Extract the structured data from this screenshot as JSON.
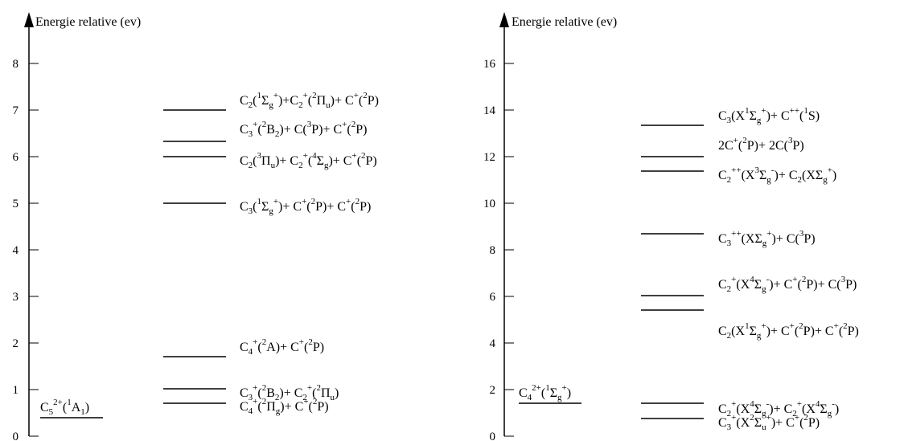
{
  "panels": [
    {
      "title": "Energie relative (ev)",
      "ymax": 9,
      "ticks": [
        0,
        1,
        2,
        3,
        4,
        5,
        6,
        7,
        8
      ],
      "reference": {
        "label": "C5(2+)(1A1)",
        "energy": 0.4
      },
      "levels": [
        {
          "energy": 0.7,
          "label": "C4+(2Πg)+ C+(2P)"
        },
        {
          "energy": 1.0,
          "label": "C3+(2B2)+ C2+(2Πu)"
        },
        {
          "energy": 1.7,
          "label": "C4+(2A)+ C+(2P)"
        },
        {
          "energy": 5.0,
          "label": "C3(1Σg+)+ C+(2P)+ C+(2P)"
        },
        {
          "energy": 6.0,
          "label": "C2(3Πu)+ C2+(4Σg)+ C+(2P)"
        },
        {
          "energy": 6.3,
          "label": "C3+(2B2)+ C(3P)+ C+(2P)"
        },
        {
          "energy": 7.0,
          "label": "C2(1Σg+)+C2+(2Πu)+ C+(2P)"
        }
      ]
    },
    {
      "title": "Energie relative (ev)",
      "ymax": 18,
      "ticks": [
        0,
        2,
        4,
        6,
        8,
        10,
        12,
        14,
        16
      ],
      "reference": {
        "label": "C4(2+)(1Σg+)",
        "energy": 1.4
      },
      "levels": [
        {
          "energy": 0.7,
          "label": "C3+(X2Σu+)+ C+(2P)"
        },
        {
          "energy": 1.4,
          "label": "C2+(X4Σg-)+ C2+(X4Σg-)"
        },
        {
          "energy": 5.4,
          "label": "C2(X1Σg+)+ C+(2P)+ C+(2P)"
        },
        {
          "energy": 6.0,
          "label": "C2+(X4Σg-)+ C+(2P)+ C(3P)"
        },
        {
          "energy": 8.7,
          "label": "C3++(XΣg+)+ C(3P)"
        },
        {
          "energy": 11.4,
          "label": "C2++(X3Σg-)+ C2(XΣg+)"
        },
        {
          "energy": 12.0,
          "label": "2C+(2P)+ 2C(3P)"
        },
        {
          "energy": 13.4,
          "label": "C3(X1Σg+)+ C++(1S)"
        }
      ]
    }
  ]
}
